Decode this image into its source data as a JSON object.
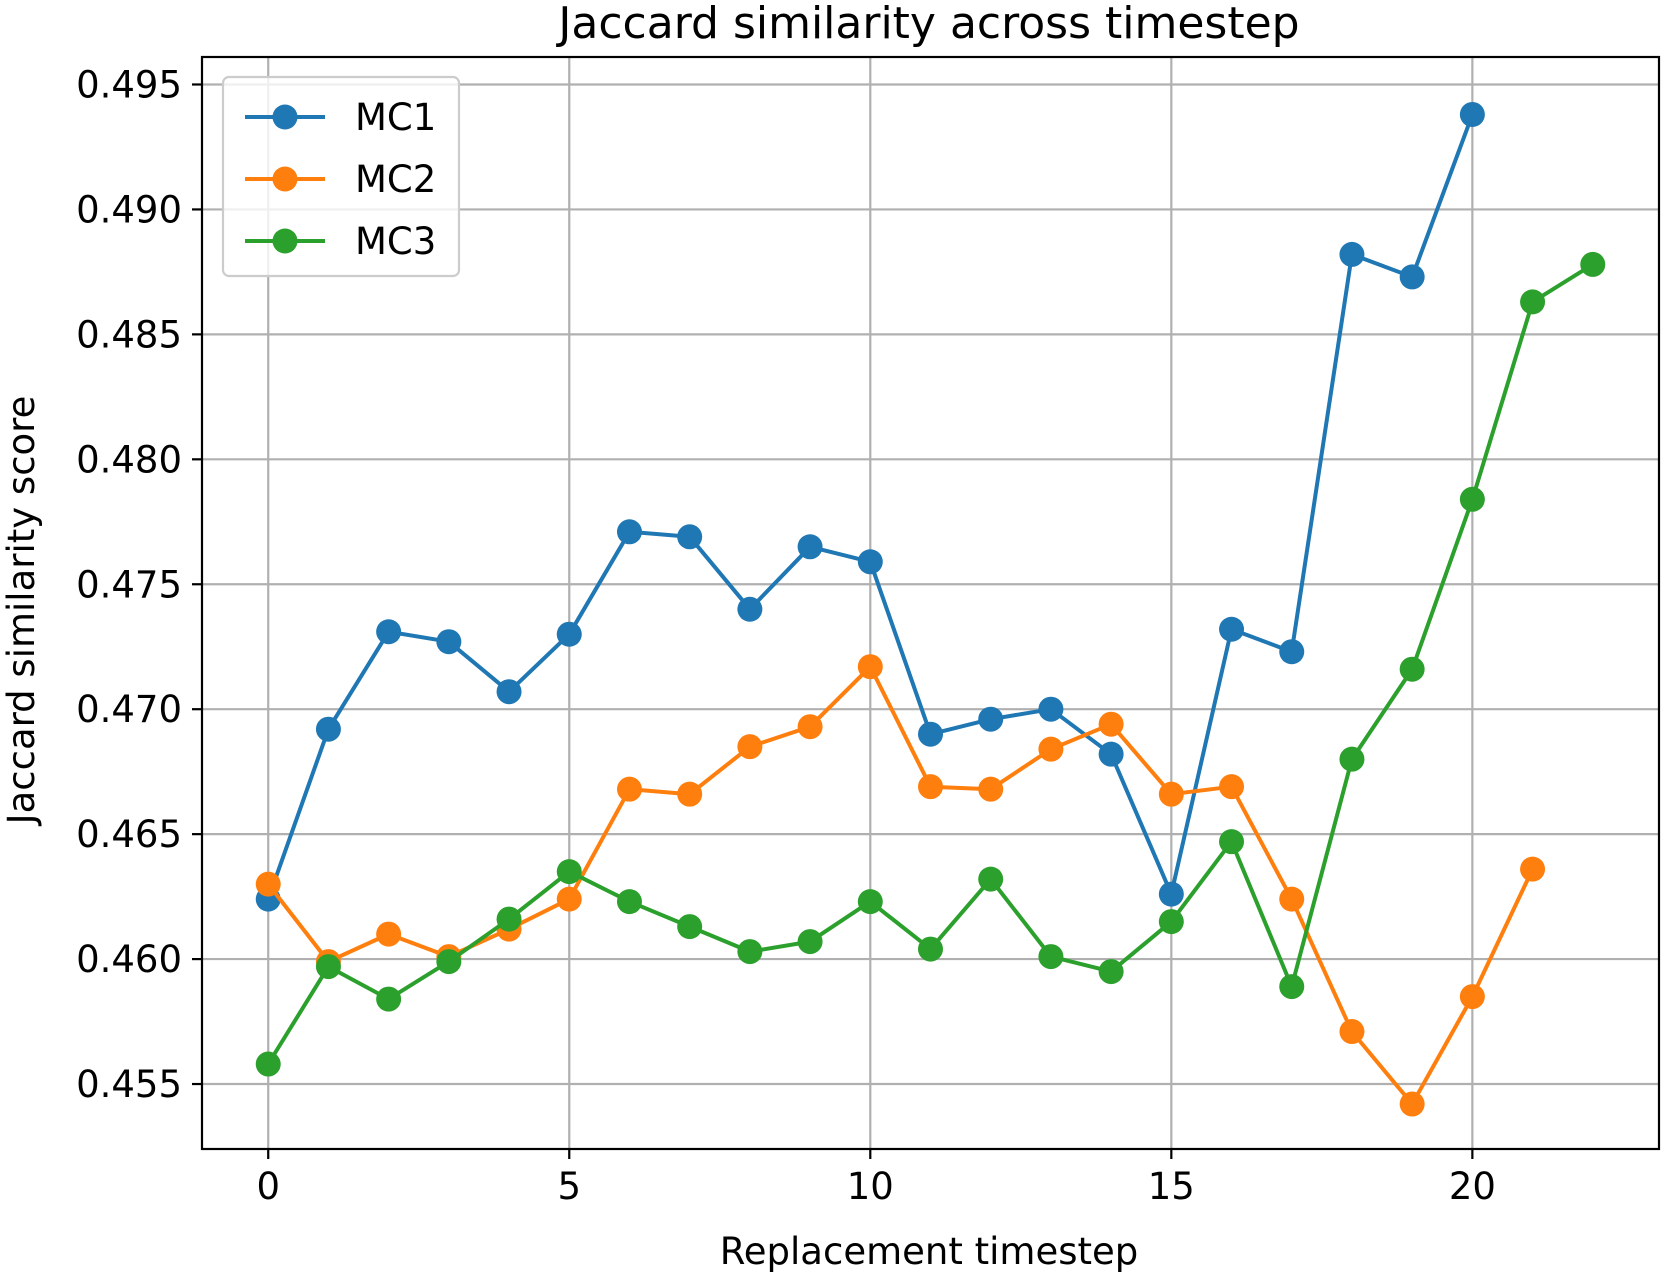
{
  "chart_data": {
    "type": "line",
    "title": "Jaccard similarity across timestep",
    "xlabel": "Replacement timestep",
    "ylabel": "Jaccard similarity score",
    "xlim": [
      -1.1,
      23.1
    ],
    "ylim": [
      0.4524,
      0.4961
    ],
    "xticks": [
      0,
      5,
      10,
      15,
      20
    ],
    "xtick_labels": [
      "0",
      "5",
      "10",
      "15",
      "20"
    ],
    "yticks": [
      0.455,
      0.46,
      0.465,
      0.47,
      0.475,
      0.48,
      0.485,
      0.49,
      0.495
    ],
    "ytick_labels": [
      "0.455",
      "0.460",
      "0.465",
      "0.470",
      "0.475",
      "0.480",
      "0.485",
      "0.490",
      "0.495"
    ],
    "grid": true,
    "legend_position": "top-left",
    "series": [
      {
        "name": "MC1",
        "color": "#1f77b4",
        "x": [
          0,
          1,
          2,
          3,
          4,
          5,
          6,
          7,
          8,
          9,
          10,
          11,
          12,
          13,
          14,
          15,
          16,
          17,
          18,
          19,
          20
        ],
        "y": [
          0.4624,
          0.4692,
          0.4731,
          0.4727,
          0.4707,
          0.473,
          0.4771,
          0.4769,
          0.474,
          0.4765,
          0.4759,
          0.469,
          0.4696,
          0.47,
          0.4682,
          0.4626,
          0.4732,
          0.4723,
          0.4882,
          0.4873,
          0.4938
        ]
      },
      {
        "name": "MC2",
        "color": "#ff7f0e",
        "x": [
          0,
          1,
          2,
          3,
          4,
          5,
          6,
          7,
          8,
          9,
          10,
          11,
          12,
          13,
          14,
          15,
          16,
          17,
          18,
          19,
          20,
          21
        ],
        "y": [
          0.463,
          0.4599,
          0.461,
          0.4601,
          0.4612,
          0.4624,
          0.4668,
          0.4666,
          0.4685,
          0.4693,
          0.4717,
          0.4669,
          0.4668,
          0.4684,
          0.4694,
          0.4666,
          0.4669,
          0.4624,
          0.4571,
          0.4542,
          0.4585,
          0.4636
        ]
      },
      {
        "name": "MC3",
        "color": "#2ca02c",
        "x": [
          0,
          1,
          2,
          3,
          4,
          5,
          6,
          7,
          8,
          9,
          10,
          11,
          12,
          13,
          14,
          15,
          16,
          17,
          18,
          19,
          20,
          21,
          22
        ],
        "y": [
          0.4558,
          0.4597,
          0.4584,
          0.4599,
          0.4616,
          0.4635,
          0.4623,
          0.4613,
          0.4603,
          0.4607,
          0.4623,
          0.4604,
          0.4632,
          0.4601,
          0.4595,
          0.4615,
          0.4647,
          0.4589,
          0.468,
          0.4716,
          0.4784,
          0.4863,
          0.4878
        ]
      }
    ]
  }
}
